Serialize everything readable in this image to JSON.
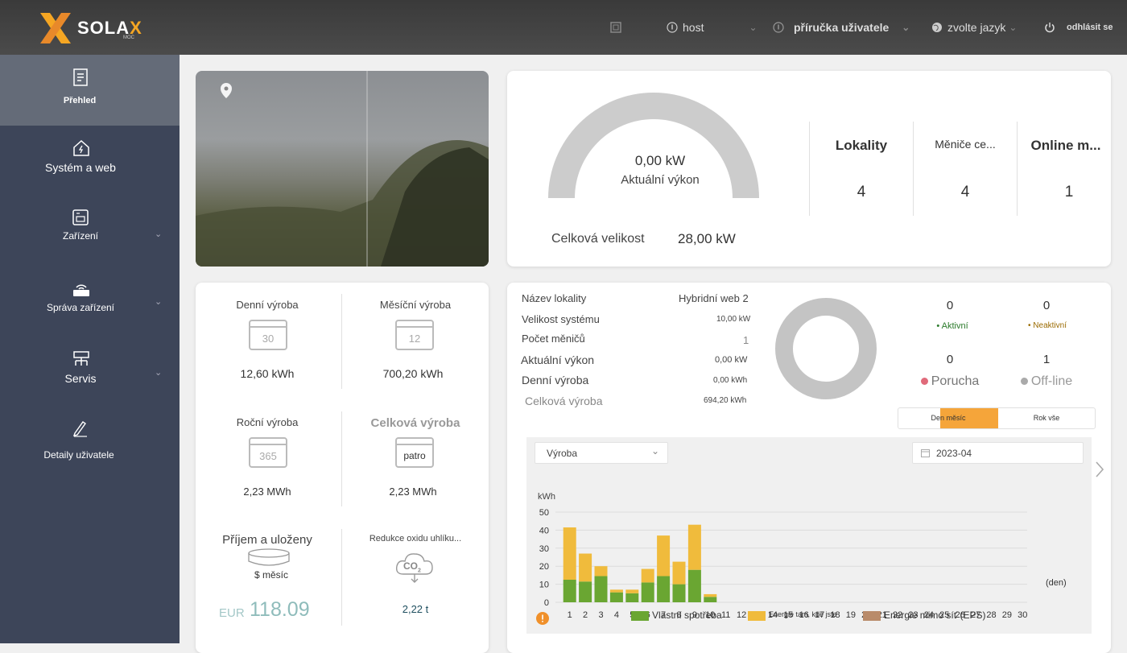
{
  "brand": {
    "name_a": "SOLA",
    "name_b": "X",
    "sub": "MOC"
  },
  "topbar": {
    "host": "host",
    "manual": "příručka uživatele",
    "language": "zvolte jazyk",
    "logout": "odhlásit se"
  },
  "sidebar": {
    "items": [
      {
        "label": "Přehled",
        "icon": "document-icon",
        "active": true
      },
      {
        "label": "Systém a web",
        "icon": "house-icon"
      },
      {
        "label": "Zařízení",
        "icon": "inverter-icon"
      },
      {
        "label": "Správa zařízení",
        "icon": "router-icon"
      },
      {
        "label": "Servis",
        "icon": "network-icon"
      },
      {
        "label": "Detaily uživatele",
        "icon": "pen-icon"
      }
    ]
  },
  "power": {
    "gauge_value": "0,00 kW",
    "gauge_label": "Aktuální výkon",
    "total_label": "Celková velikost",
    "total_value": "28,00 kW"
  },
  "summary": [
    {
      "label": "Lokality",
      "value": "4"
    },
    {
      "label": "Měniče ce...",
      "value": "4"
    },
    {
      "label": "Online m...",
      "value": "1"
    }
  ],
  "production": {
    "daily_label": "Denní výroba",
    "daily_cal": "30",
    "daily_value": "12,60 kWh",
    "monthly_label": "Měsíční výroba",
    "monthly_cal": "12",
    "monthly_value": "700,20 kWh",
    "yearly_label": "Roční výroba",
    "yearly_cal": "365",
    "yearly_value": "2,23 MWh",
    "total_label": "Celková výroba",
    "total_cal": "patro",
    "total_value": "2,23 MWh",
    "income_label": "Příjem a uloženy",
    "income_period": "$ měsíc",
    "income_currency": "EUR",
    "income_value": "118.09",
    "co2_label": "Redukce oxidu uhlíku...",
    "co2_icon_text": "CO",
    "co2_sub": "2",
    "co2_value": "2,22 t"
  },
  "site": {
    "name_label": "Název lokality",
    "name_value": "Hybridní web 2",
    "size_label": "Velikost systému",
    "size_value": "10,00 kW",
    "inverters_label": "Počet měničů",
    "inverters_value": "1",
    "power_label": "Aktuální výkon",
    "power_value": "0,00 kW",
    "daily_label": "Denní výroba",
    "daily_value": "0,00 kWh",
    "total_label": "Celková výroba",
    "total_value": "694,20 kWh"
  },
  "status": {
    "active_count": "0",
    "active_label": "Aktivní",
    "inactive_count": "0",
    "inactive_label": "Neaktivní",
    "fault_count": "0",
    "fault_label": "Porucha",
    "offline_count": "1",
    "offline_label": "Off-line"
  },
  "range_tabs": {
    "day_month": "Den měsíc",
    "year_all": "Rok vše"
  },
  "chart_controls": {
    "type_select": "Výroba",
    "date": "2023-04"
  },
  "colors": {
    "accent": "#f5a623",
    "self_use": "#6aa632",
    "grid": "#f0bb3c",
    "eps": "#b98b6a"
  },
  "chart_data": {
    "type": "bar",
    "stacked": true,
    "ylabel": "kWh",
    "xlabel": "(den)",
    "ylim": [
      0,
      50
    ],
    "yticks": [
      0,
      10,
      20,
      30,
      40,
      50
    ],
    "categories": [
      "1",
      "2",
      "3",
      "4",
      "5",
      "6",
      "7",
      "8",
      "9",
      "10",
      "11",
      "12",
      "13",
      "14",
      "15",
      "16",
      "17",
      "18",
      "19",
      "20",
      "21",
      "22",
      "23",
      "24",
      "25",
      "26",
      "27",
      "28",
      "29",
      "30"
    ],
    "series": [
      {
        "name": "Vlastní spotřeba",
        "color": "#6aa632",
        "values": [
          12.5,
          11.5,
          14.5,
          5.5,
          5,
          11,
          14.5,
          10,
          18,
          3,
          0,
          0,
          0,
          0,
          0,
          0,
          0,
          0,
          0,
          0,
          0,
          0,
          0,
          0,
          0,
          0,
          0,
          0,
          0,
          0
        ]
      },
      {
        "name": "Energie tam, kde jste",
        "color": "#f0bb3c",
        "values": [
          29,
          15.5,
          5.5,
          1.5,
          2,
          7.5,
          22.5,
          12.5,
          25,
          1.5,
          0,
          0,
          0,
          0,
          0,
          0,
          0,
          0,
          0,
          0,
          0,
          0,
          0,
          0,
          0,
          0,
          0,
          0,
          0,
          0
        ]
      },
      {
        "name": "Energie mimo síť (EPS)",
        "color": "#b98b6a",
        "values": [
          0,
          0,
          0,
          0,
          0,
          0,
          0,
          0,
          0,
          0,
          0,
          0,
          0,
          0,
          0,
          0,
          0,
          0,
          0,
          0,
          0,
          0,
          0,
          0,
          0,
          0,
          0,
          0,
          0,
          0
        ]
      }
    ]
  }
}
